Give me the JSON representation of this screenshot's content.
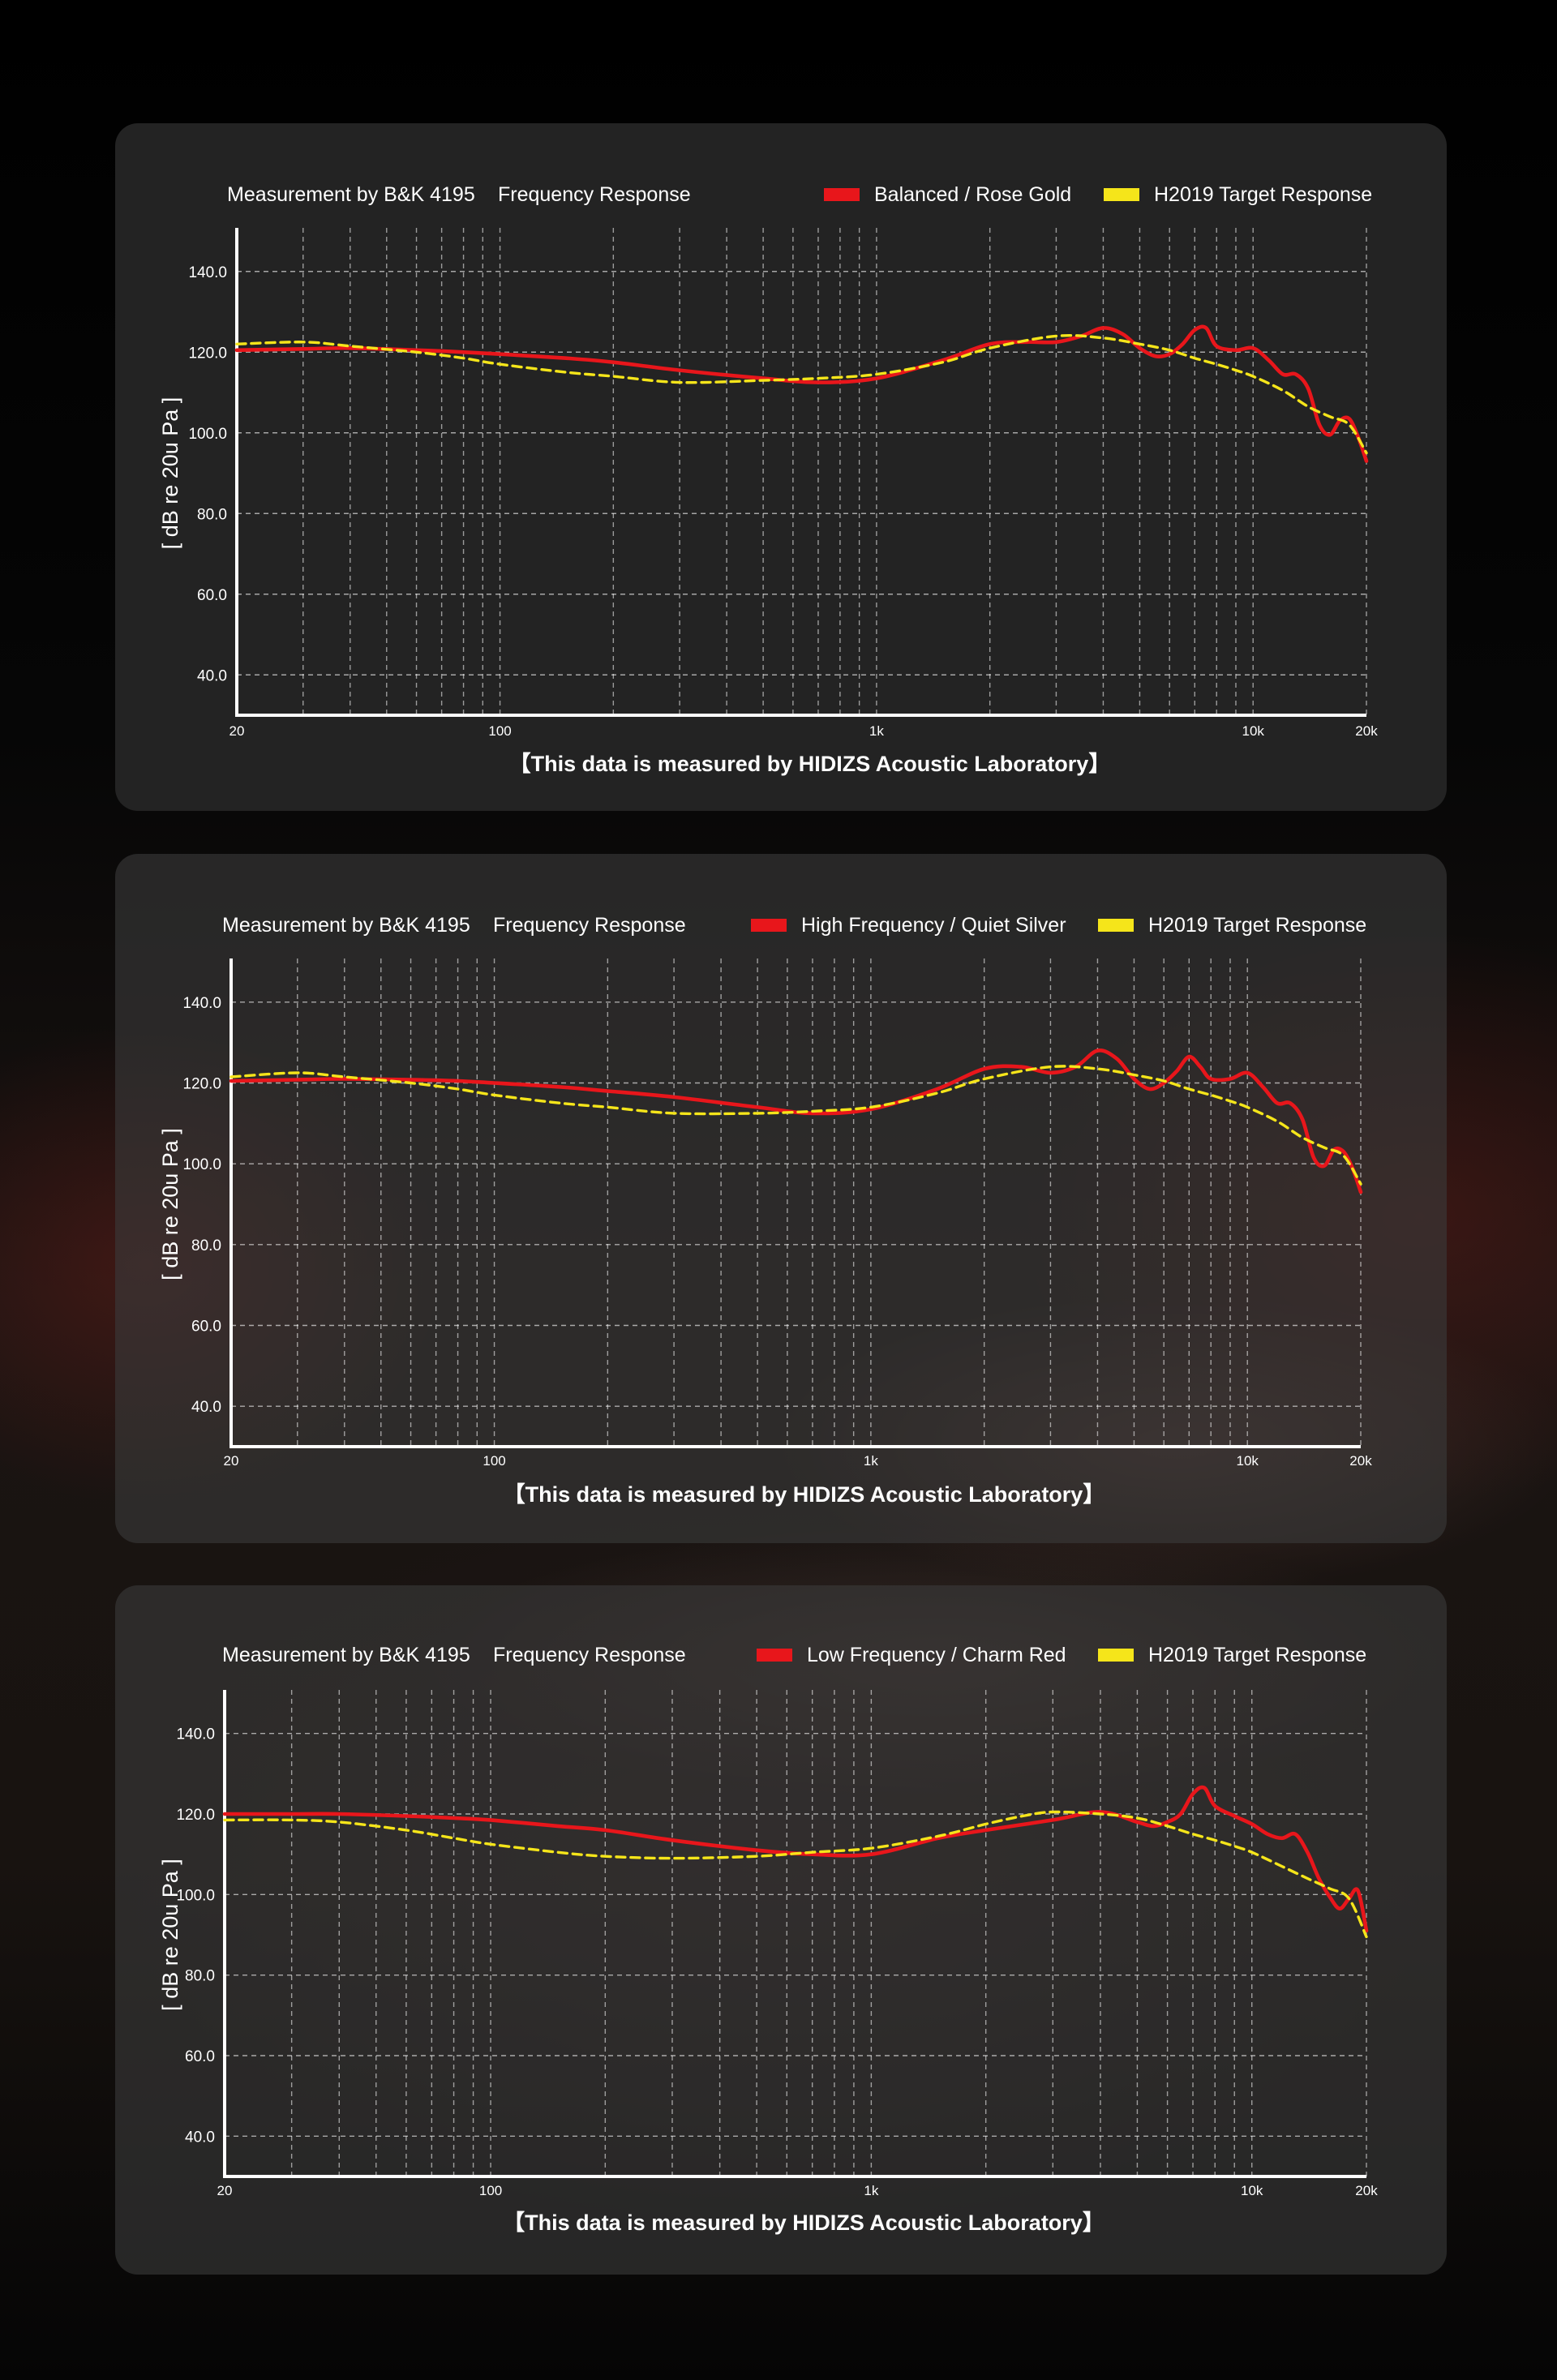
{
  "chart_data": [
    {
      "type": "line",
      "title": "Measurement by B&K 4195",
      "subtitle": "Frequency Response",
      "ylabel": "[ dB re 20u Pa ]",
      "xscale": "log",
      "xlim": [
        20,
        20000
      ],
      "ylim": [
        30,
        150
      ],
      "yticks": [
        "140.0",
        "120.0",
        "100.0",
        "80.0",
        "60.0",
        "40.0"
      ],
      "xticks": [
        "20",
        "100",
        "1k",
        "10k",
        "20k"
      ],
      "grid": true,
      "legend_position": "top-right",
      "footer": "【This data is measured by HIDIZS Acoustic Laboratory】",
      "series": [
        {
          "name": "Balanced / Rose Gold",
          "color": "#e8161b",
          "style": "solid",
          "x": [
            20,
            30,
            40,
            60,
            80,
            100,
            150,
            200,
            300,
            500,
            700,
            1000,
            1500,
            2000,
            2500,
            3000,
            3500,
            4000,
            4500,
            5000,
            5500,
            6000,
            6500,
            7000,
            7500,
            8000,
            9000,
            10000,
            11000,
            12000,
            13000,
            14000,
            15000,
            16000,
            17000,
            18000,
            19000,
            20000
          ],
          "values": [
            120.5,
            120.8,
            121,
            120.5,
            120,
            119.5,
            118.5,
            117.5,
            115.5,
            113.5,
            112.5,
            113.5,
            118,
            122,
            122.5,
            122.5,
            124,
            126,
            124.5,
            121,
            119,
            119.5,
            122,
            125.5,
            126,
            121.5,
            120.5,
            121,
            118,
            114.5,
            114.5,
            111,
            102,
            99.5,
            103,
            103.5,
            99,
            93
          ]
        },
        {
          "name": "H2019 Target Response",
          "color": "#f5e51a",
          "style": "dashed",
          "x": [
            20,
            30,
            40,
            60,
            80,
            100,
            150,
            200,
            300,
            500,
            700,
            1000,
            1500,
            2000,
            3000,
            4000,
            5000,
            6000,
            7000,
            8000,
            9000,
            10000,
            12000,
            14000,
            16000,
            18000,
            20000
          ],
          "values": [
            122,
            122.5,
            121.5,
            120,
            118.5,
            117,
            115,
            114,
            112.5,
            113,
            113.5,
            114.5,
            117.5,
            121,
            124,
            123.5,
            122,
            120.5,
            118.5,
            117,
            115.5,
            114,
            110.5,
            106.5,
            104,
            102,
            95
          ]
        }
      ]
    },
    {
      "type": "line",
      "title": "Measurement by B&K 4195",
      "subtitle": "Frequency Response",
      "ylabel": "[ dB re 20u Pa ]",
      "xscale": "log",
      "xlim": [
        20,
        20000
      ],
      "ylim": [
        30,
        150
      ],
      "yticks": [
        "140.0",
        "120.0",
        "100.0",
        "80.0",
        "60.0",
        "40.0"
      ],
      "xticks": [
        "20",
        "100",
        "1k",
        "10k",
        "20k"
      ],
      "grid": true,
      "legend_position": "top-right",
      "footer": "【This data is measured by HIDIZS Acoustic Laboratory】",
      "series": [
        {
          "name": "High Frequency / Quiet Silver",
          "color": "#e8161b",
          "style": "solid",
          "x": [
            20,
            30,
            40,
            60,
            80,
            100,
            150,
            200,
            300,
            500,
            700,
            1000,
            1500,
            2000,
            2500,
            3000,
            3500,
            4000,
            4500,
            5000,
            5500,
            6000,
            6500,
            7000,
            7500,
            8000,
            9000,
            10000,
            11000,
            12000,
            13000,
            14000,
            15000,
            16000,
            17000,
            18000,
            19000,
            20000
          ],
          "values": [
            120.5,
            120.8,
            121,
            120.8,
            120.5,
            120,
            119,
            118,
            116.5,
            114,
            112.5,
            113.5,
            118.5,
            123.5,
            124,
            122.5,
            124,
            128,
            126,
            121,
            118.5,
            120,
            123,
            126.5,
            124,
            121,
            121,
            122.5,
            119,
            115,
            115,
            111,
            101.5,
            99.5,
            103.5,
            103,
            99,
            93
          ]
        },
        {
          "name": "H2019 Target Response",
          "color": "#f5e51a",
          "style": "dashed",
          "x": [
            20,
            30,
            40,
            60,
            80,
            100,
            150,
            200,
            300,
            500,
            700,
            1000,
            1500,
            2000,
            3000,
            4000,
            5000,
            6000,
            7000,
            8000,
            9000,
            10000,
            12000,
            14000,
            16000,
            18000,
            20000
          ],
          "values": [
            121.5,
            122.5,
            121.5,
            120,
            118.5,
            117,
            115,
            114,
            112.5,
            112.5,
            113,
            114,
            117.5,
            121,
            124,
            123.5,
            122,
            120.5,
            118.5,
            117,
            115.5,
            114,
            110.5,
            106.5,
            104,
            102,
            95
          ]
        }
      ]
    },
    {
      "type": "line",
      "title": "Measurement by B&K 4195",
      "subtitle": "Frequency Response",
      "ylabel": "[ dB re 20u Pa ]",
      "xscale": "log",
      "xlim": [
        20,
        20000
      ],
      "ylim": [
        30,
        150
      ],
      "yticks": [
        "140.0",
        "120.0",
        "100.0",
        "80.0",
        "60.0",
        "40.0"
      ],
      "xticks": [
        "20",
        "100",
        "1k",
        "10k",
        "20k"
      ],
      "grid": true,
      "legend_position": "top-right",
      "footer": "【This data is measured by HIDIZS Acoustic Laboratory】",
      "series": [
        {
          "name": "Low Frequency / Charm Red",
          "color": "#e8161b",
          "style": "solid",
          "x": [
            20,
            30,
            40,
            60,
            80,
            100,
            150,
            200,
            300,
            500,
            700,
            1000,
            1500,
            2000,
            3000,
            4000,
            5000,
            5500,
            6000,
            6500,
            7000,
            7500,
            8000,
            9000,
            10000,
            11000,
            12000,
            13000,
            14000,
            15000,
            16000,
            17000,
            18000,
            19000,
            20000
          ],
          "values": [
            120,
            120,
            120,
            119.5,
            119,
            118.5,
            117,
            116,
            113.5,
            111,
            110,
            110,
            114,
            116,
            118.5,
            120.5,
            118,
            117,
            118,
            120,
            125,
            126.5,
            122,
            119.5,
            117.5,
            115,
            114,
            115,
            110.5,
            104,
            99.5,
            96.5,
            99,
            101,
            91
          ]
        },
        {
          "name": "H2019 Target Response",
          "color": "#f5e51a",
          "style": "dashed",
          "x": [
            20,
            30,
            40,
            60,
            80,
            100,
            150,
            200,
            300,
            500,
            700,
            1000,
            1500,
            2000,
            2500,
            3000,
            4000,
            5000,
            6000,
            7000,
            8000,
            9000,
            10000,
            12000,
            14000,
            16000,
            18000,
            20000
          ],
          "values": [
            118.5,
            118.5,
            118,
            116,
            114,
            112.5,
            110.5,
            109.5,
            109,
            109.5,
            110.5,
            111.5,
            114.5,
            117.5,
            119.5,
            120.5,
            120,
            119,
            117,
            115,
            113.5,
            112,
            110.5,
            107,
            104,
            101.5,
            99,
            89.5
          ]
        }
      ]
    }
  ]
}
